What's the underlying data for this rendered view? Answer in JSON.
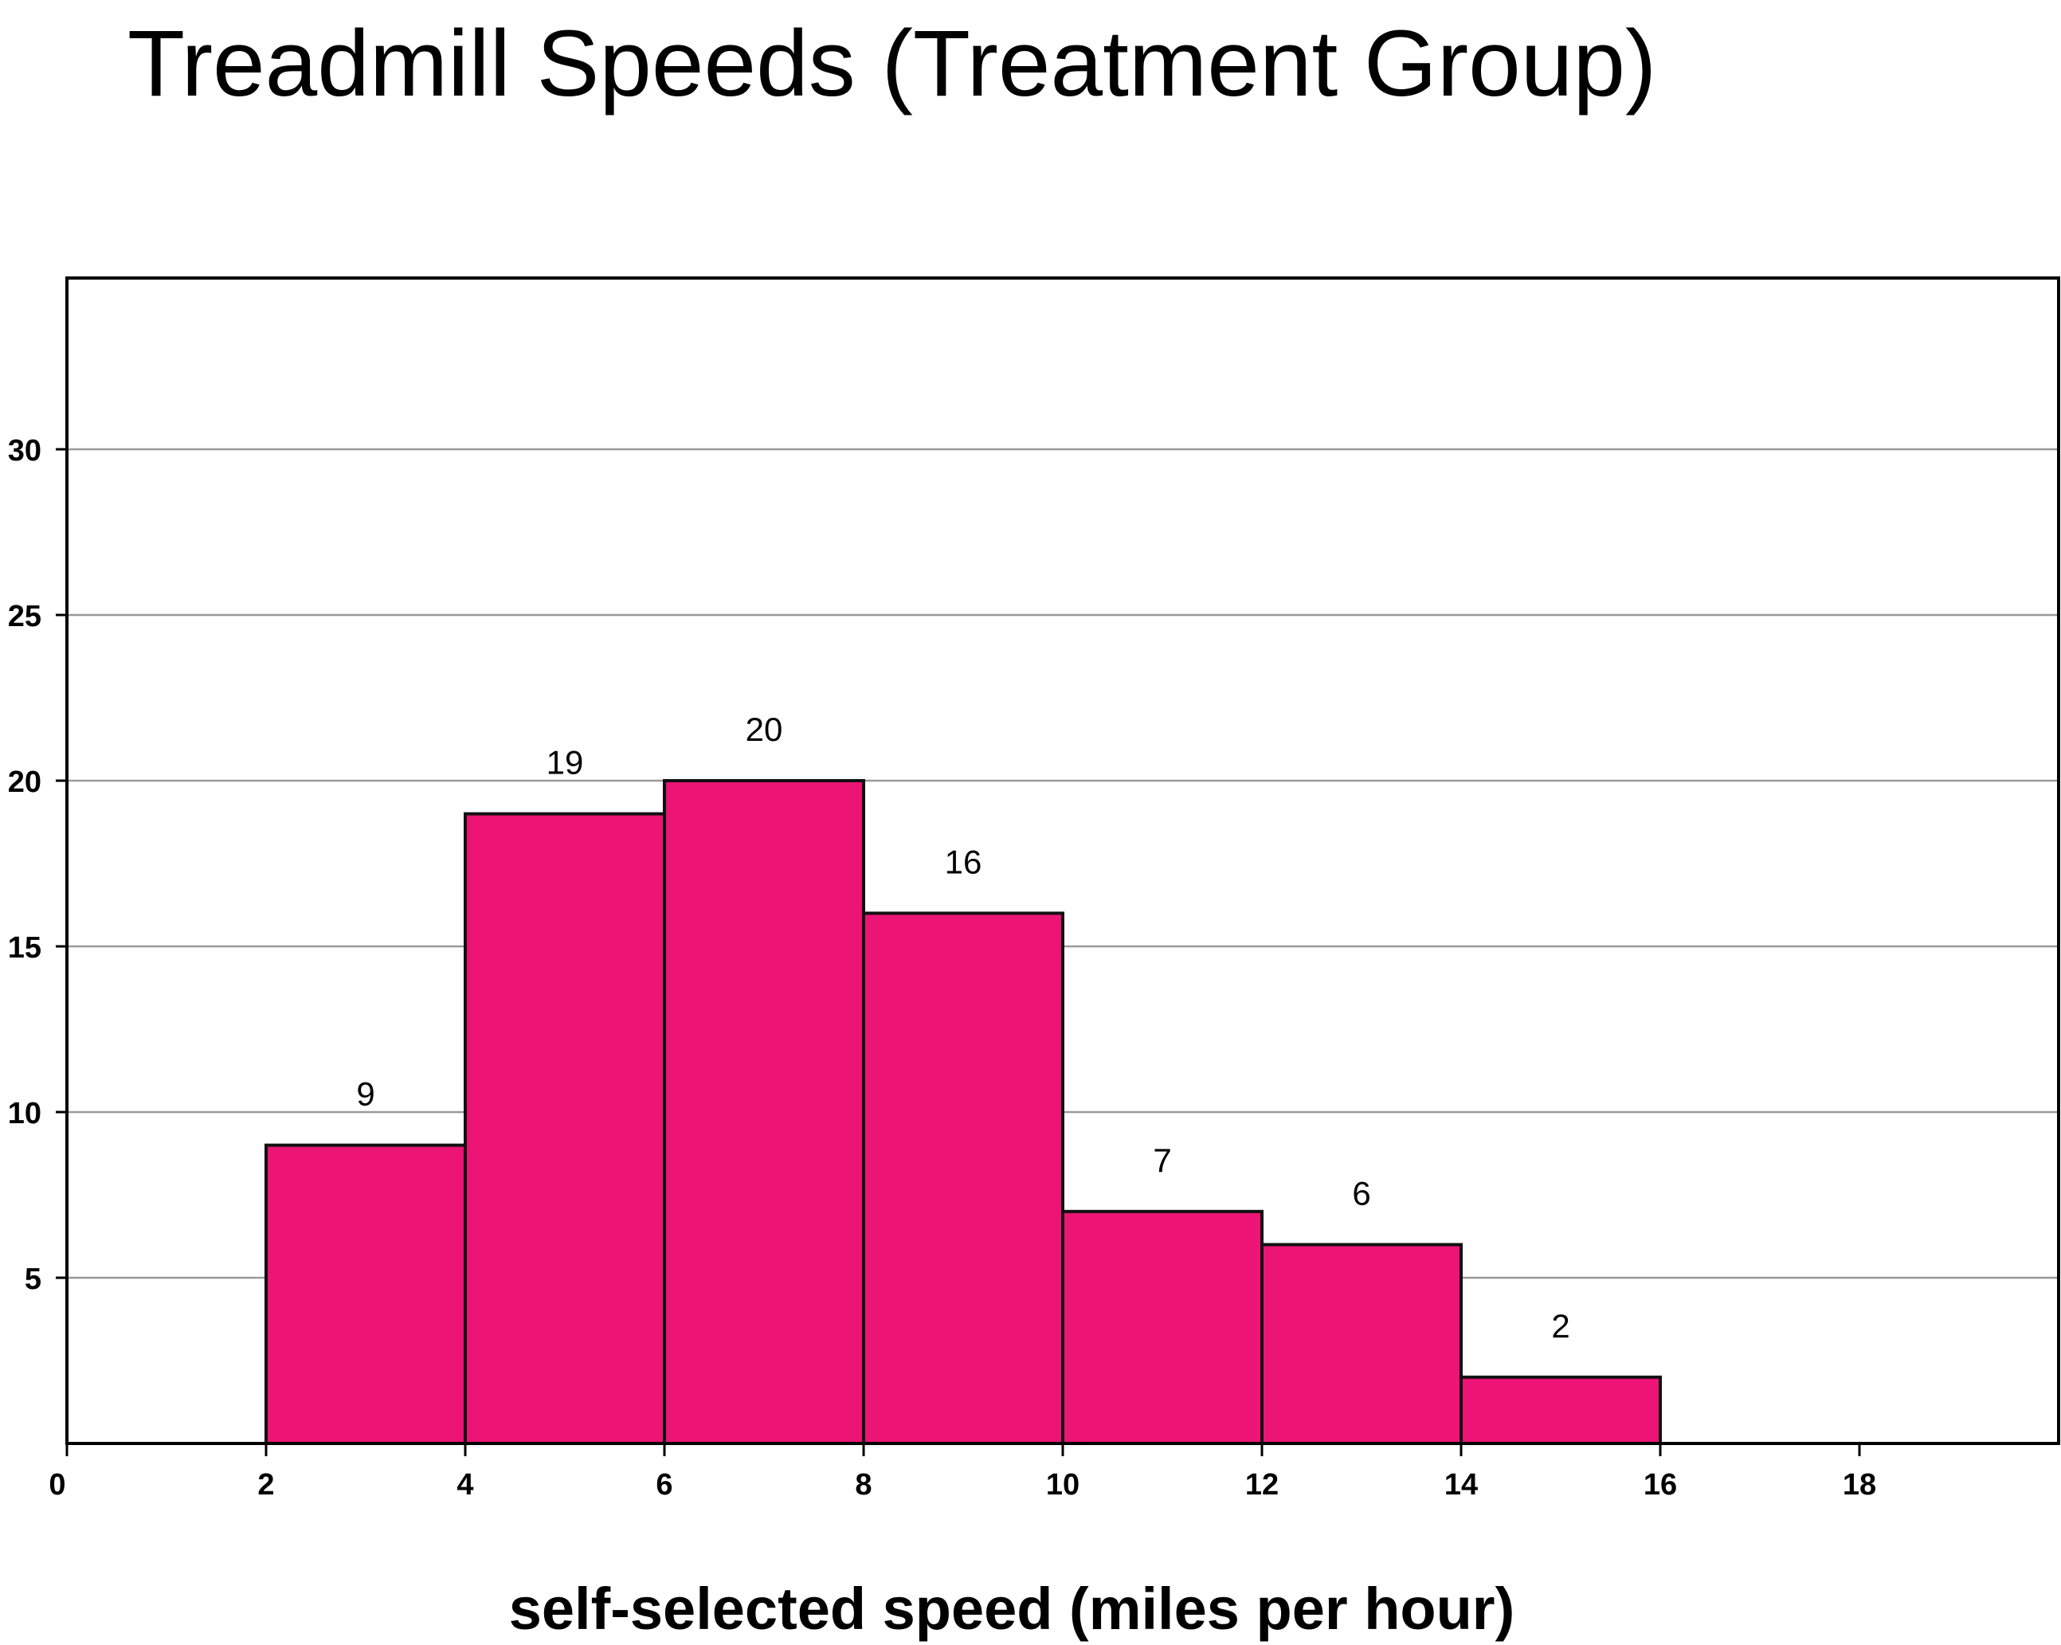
{
  "chart_data": {
    "type": "bar",
    "title": "Treadmill Speeds (Treatment Group)",
    "xlabel": "self-selected speed (miles per hour)",
    "ylabel": "",
    "bins": [
      {
        "start": 2,
        "end": 4,
        "value": 9,
        "label": "9"
      },
      {
        "start": 4,
        "end": 6,
        "value": 19,
        "label": "19"
      },
      {
        "start": 6,
        "end": 8,
        "value": 20,
        "label": "20"
      },
      {
        "start": 8,
        "end": 10,
        "value": 16,
        "label": "16"
      },
      {
        "start": 10,
        "end": 12,
        "value": 7,
        "label": "7"
      },
      {
        "start": 12,
        "end": 14,
        "value": 6,
        "label": "6"
      },
      {
        "start": 14,
        "end": 16,
        "value": 2,
        "label": "2"
      }
    ],
    "xticks": [
      "0",
      "2",
      "4",
      "6",
      "8",
      "10",
      "12",
      "14",
      "16",
      "18"
    ],
    "yticks": [
      "5",
      "10",
      "15",
      "20",
      "25",
      "30"
    ],
    "xlim": [
      0,
      20
    ],
    "ylim": [
      0,
      35
    ],
    "grid": true,
    "bar_color": "#EC1475"
  }
}
